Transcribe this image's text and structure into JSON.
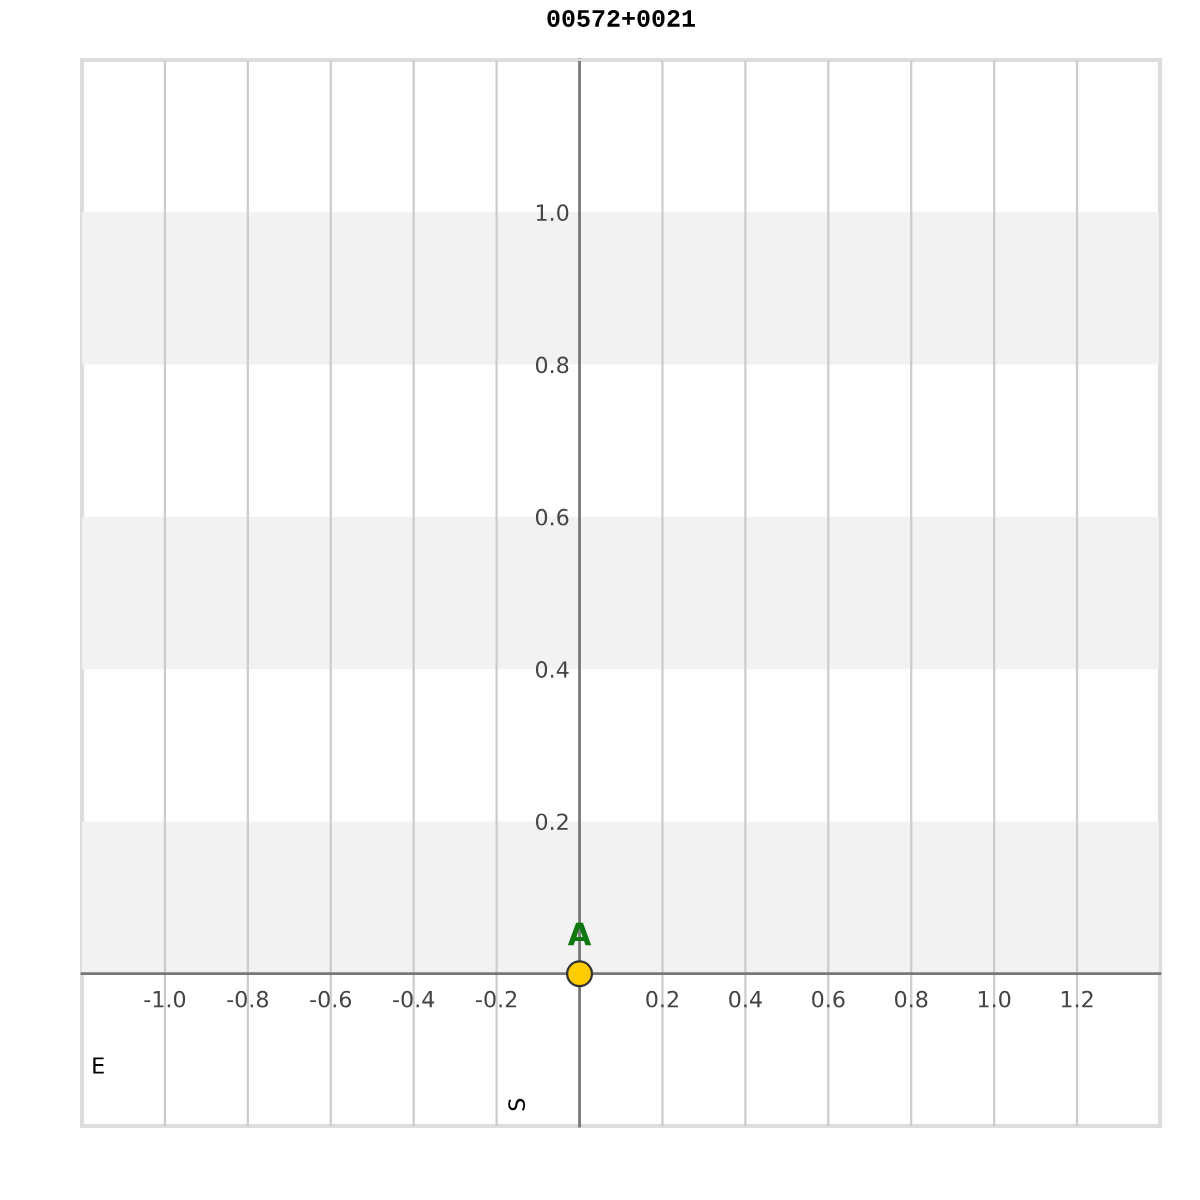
{
  "chart_data": {
    "type": "scatter",
    "title": "00572+0021",
    "xlabel": "E",
    "ylabel": "S",
    "series": [
      {
        "name": "A",
        "color": "#ffcc00",
        "x": [
          0
        ],
        "values": [
          0
        ]
      }
    ],
    "marker": "circle",
    "xlim": [
      -1.2,
      1.4
    ],
    "ylim": [
      -0.2,
      1.2
    ],
    "xticks": [
      {
        "value": -1.0,
        "label": "-1.0"
      },
      {
        "value": -0.8,
        "label": "-0.8"
      },
      {
        "value": -0.6,
        "label": "-0.6"
      },
      {
        "value": -0.4,
        "label": "-0.4"
      },
      {
        "value": -0.2,
        "label": "-0.2"
      },
      {
        "value": 0.2,
        "label": "0.2"
      },
      {
        "value": 0.4,
        "label": "0.4"
      },
      {
        "value": 0.6,
        "label": "0.6"
      },
      {
        "value": 0.8,
        "label": "0.8"
      },
      {
        "value": 1.0,
        "label": "1.0"
      },
      {
        "value": 1.2,
        "label": "1.2"
      }
    ],
    "yticks": [
      {
        "value": 0.2,
        "label": "0.2"
      },
      {
        "value": 0.4,
        "label": "0.4"
      },
      {
        "value": 0.6,
        "label": "0.6"
      },
      {
        "value": 0.8,
        "label": "0.8"
      },
      {
        "value": 1.0,
        "label": "1.0"
      }
    ],
    "bands": [
      {
        "axis": "y",
        "from": 0,
        "to": 0.2,
        "color": "#f2f2f2"
      },
      {
        "axis": "y",
        "from": 0.4,
        "to": 0.6,
        "color": "#f2f2f2"
      },
      {
        "axis": "y",
        "from": 0.8,
        "to": 1.0,
        "color": "#f2f2f2"
      }
    ],
    "grid": "x",
    "legend": false
  }
}
